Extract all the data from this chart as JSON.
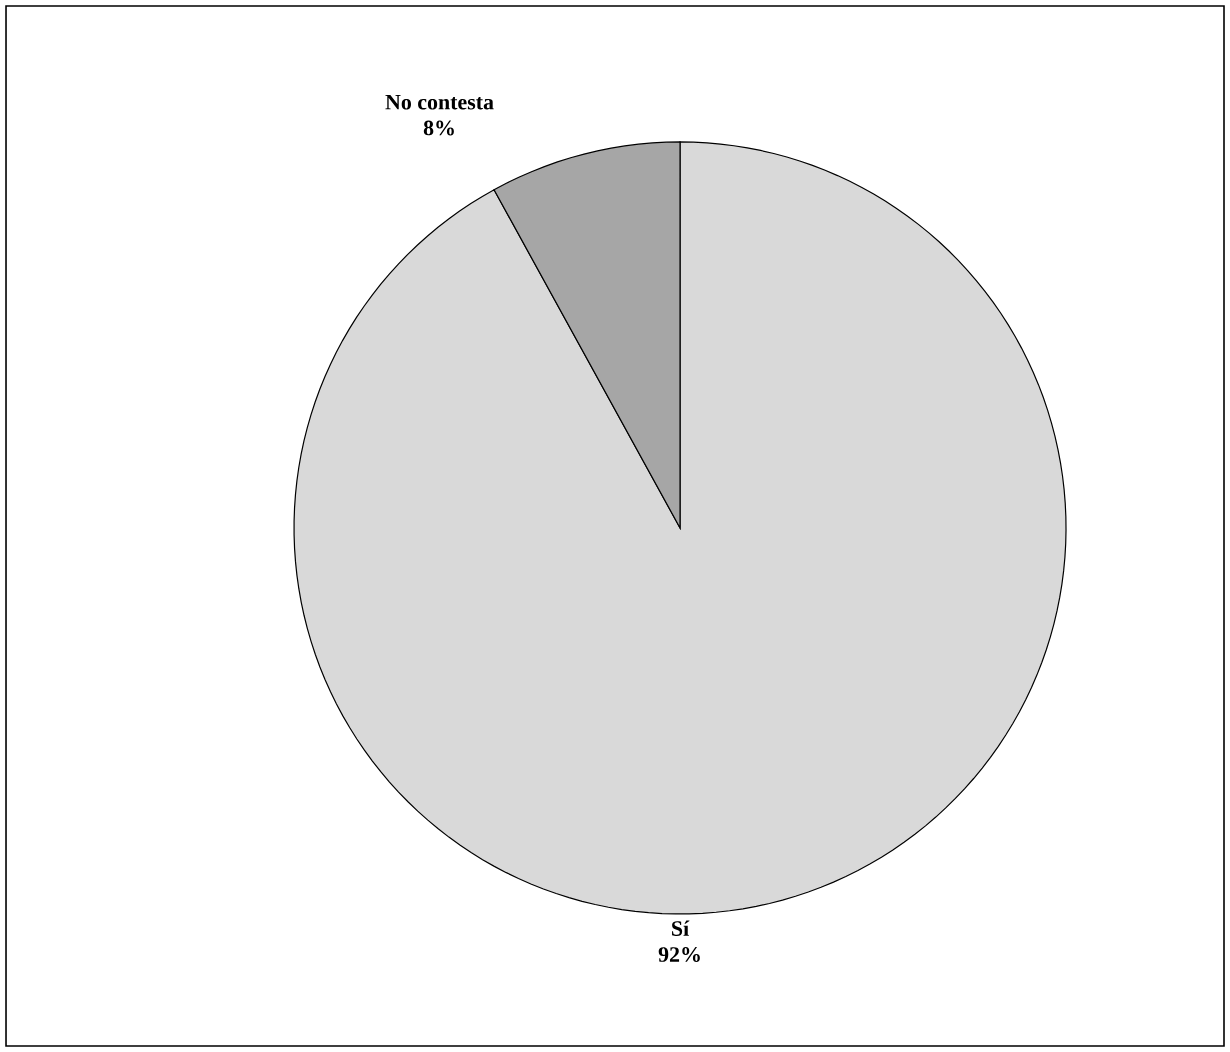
{
  "chart_data": {
    "type": "pie",
    "categories": [
      "Sí",
      "No contesta"
    ],
    "values": [
      92,
      8
    ],
    "value_labels": [
      "92%",
      "8%"
    ],
    "colors": [
      "#d9d9d9",
      "#a6a6a6"
    ]
  }
}
